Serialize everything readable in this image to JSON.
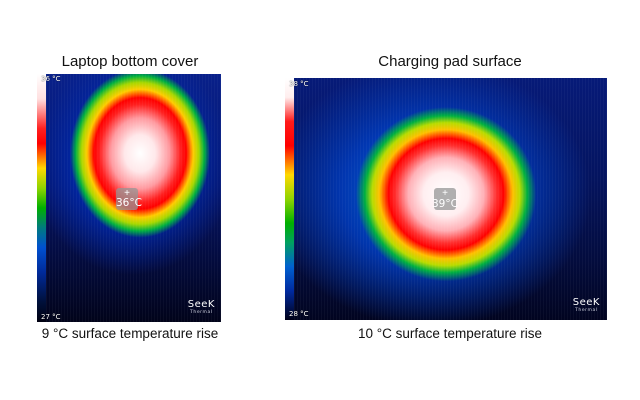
{
  "panels": [
    {
      "title": "Laptop bottom cover",
      "scale_max": "36 °C",
      "scale_min": "27 °C",
      "spot_reading": "36°C",
      "caption": "9 °C surface temperature rise",
      "logo_text": "SeeK",
      "logo_subtext": "Thermal"
    },
    {
      "title": "Charging pad surface",
      "scale_max": "38 °C",
      "scale_min": "28 °C",
      "spot_reading": "39°C",
      "caption": "10 °C surface temperature rise",
      "logo_text": "SeeK",
      "logo_subtext": "Thermal"
    }
  ],
  "colors": {
    "background": "#ffffff",
    "hot": "#ff0000",
    "warm": "#ffd800",
    "mid": "#00b000",
    "cool": "#0030b0",
    "cold": "#000018"
  }
}
